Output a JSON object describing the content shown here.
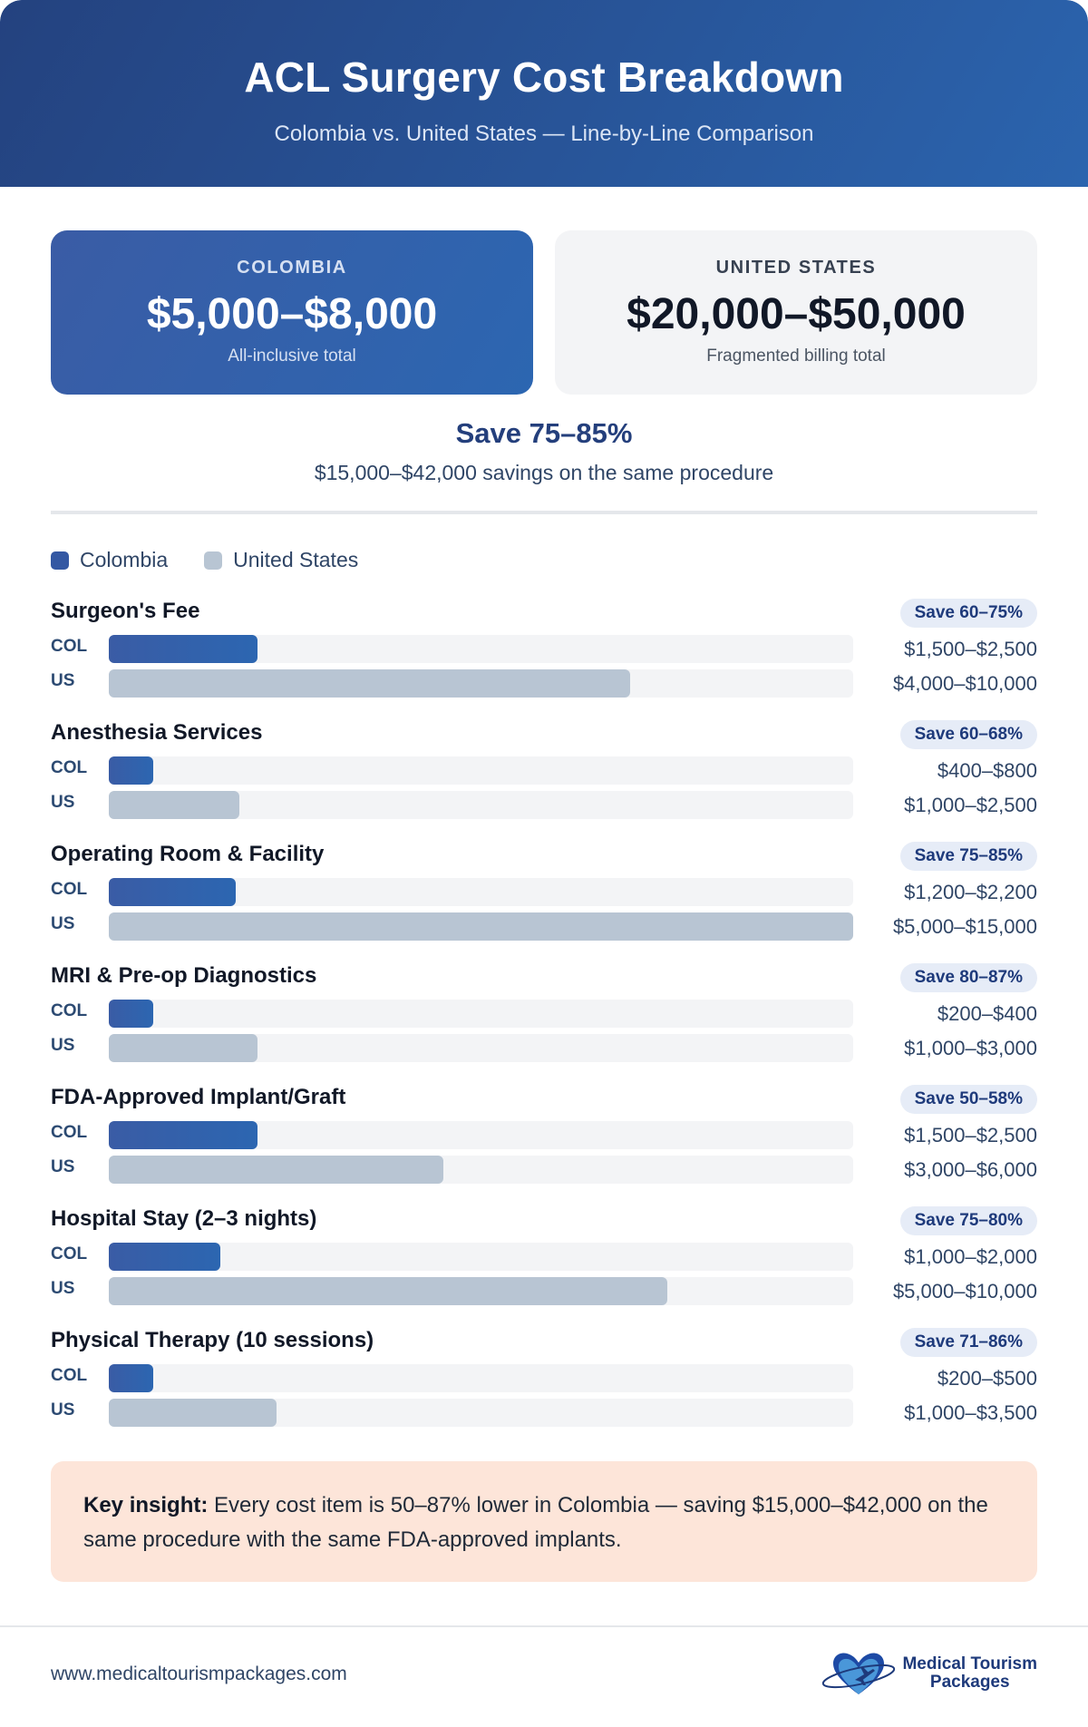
{
  "header": {
    "title": "ACL Surgery Cost Breakdown",
    "subtitle": "Colombia vs. United States — Line-by-Line Comparison"
  },
  "summary": {
    "colombia": {
      "label": "COLOMBIA",
      "amount": "$5,000–$8,000",
      "note": "All-inclusive total"
    },
    "us": {
      "label": "UNITED STATES",
      "amount": "$20,000–$50,000",
      "note": "Fragmented billing total"
    },
    "save_title": "Save 75–85%",
    "save_detail": "$15,000–$42,000 savings on the same procedure"
  },
  "legend": {
    "colombia": "Colombia",
    "us": "United States"
  },
  "row_labels": {
    "col": "COL",
    "us": "US"
  },
  "colors": {
    "colombia": "#3458a3",
    "us": "#b8c5d3",
    "badge": "#e6ecf7",
    "insight_bg": "#fde5d9"
  },
  "items": [
    {
      "title": "Surgeon's Fee",
      "badge": "Save 60–75%",
      "col_value": "$1,500–$2,500",
      "us_value": "$4,000–$10,000",
      "col_pct": 20,
      "us_pct": 70
    },
    {
      "title": "Anesthesia Services",
      "badge": "Save 60–68%",
      "col_value": "$400–$800",
      "us_value": "$1,000–$2,500",
      "col_pct": 6,
      "us_pct": 17.5
    },
    {
      "title": "Operating Room & Facility",
      "badge": "Save 75–85%",
      "col_value": "$1,200–$2,200",
      "us_value": "$5,000–$15,000",
      "col_pct": 17,
      "us_pct": 100
    },
    {
      "title": "MRI & Pre-op Diagnostics",
      "badge": "Save 80–87%",
      "col_value": "$200–$400",
      "us_value": "$1,000–$3,000",
      "col_pct": 6,
      "us_pct": 20
    },
    {
      "title": "FDA-Approved Implant/Graft",
      "badge": "Save 50–58%",
      "col_value": "$1,500–$2,500",
      "us_value": "$3,000–$6,000",
      "col_pct": 20,
      "us_pct": 45
    },
    {
      "title": "Hospital Stay (2–3 nights)",
      "badge": "Save 75–80%",
      "col_value": "$1,000–$2,000",
      "us_value": "$5,000–$10,000",
      "col_pct": 15,
      "us_pct": 75
    },
    {
      "title": "Physical Therapy (10 sessions)",
      "badge": "Save 71–86%",
      "col_value": "$200–$500",
      "us_value": "$1,000–$3,500",
      "col_pct": 6,
      "us_pct": 22.5
    }
  ],
  "insight": {
    "lead": "Key insight:",
    "text": " Every cost item is 50–87% lower in Colombia — saving $15,000–$42,000 on the same procedure with the same FDA-approved implants."
  },
  "footer": {
    "url": "www.medicaltourismpackages.com",
    "logo_line1": "Medical Tourism",
    "logo_line2": "Packages",
    "logo_icon": "heart-airplane-icon"
  }
}
